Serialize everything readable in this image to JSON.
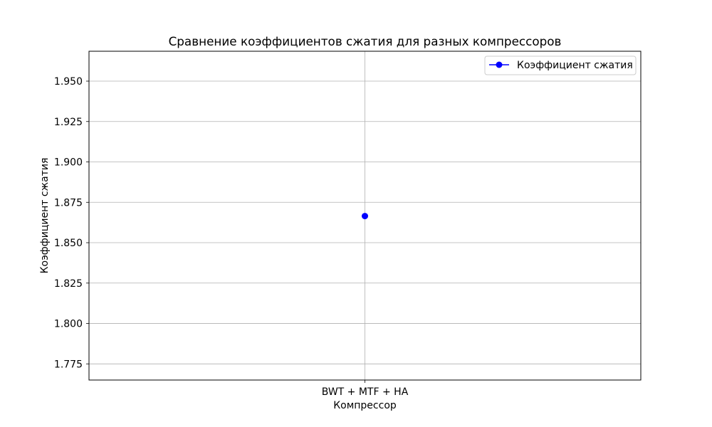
{
  "chart_data": {
    "type": "line",
    "title": "Сравнение коэффициентов сжатия для разных компрессоров",
    "xlabel": "Компрессор",
    "ylabel": "Коэффициент сжатия",
    "categories": [
      "BWT + MTF + HA"
    ],
    "series": [
      {
        "name": "Коэффициент сжатия",
        "values": [
          1.8665
        ],
        "color": "#0000ff",
        "marker": "circle"
      }
    ],
    "ylim": [
      1.765,
      1.9685
    ],
    "yticks": [
      "1.775",
      "1.800",
      "1.825",
      "1.850",
      "1.875",
      "1.900",
      "1.925",
      "1.950"
    ],
    "grid": true,
    "legend_position": "top-right"
  }
}
